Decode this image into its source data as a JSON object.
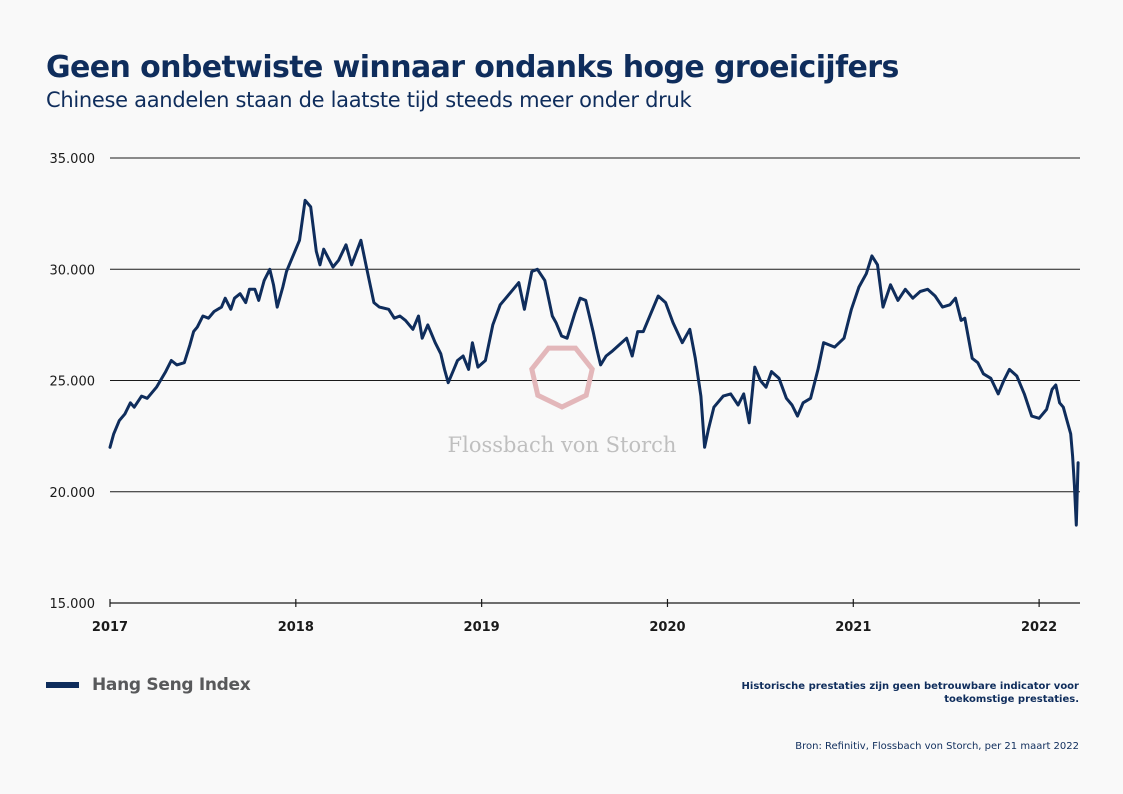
{
  "header": {
    "title": "Geen onbetwiste winnaar ondanks hoge groeicijfers",
    "subtitle": "Chinese aandelen staan de laatste tijd steeds meer onder druk"
  },
  "watermark": {
    "text": "Flossbach von Storch",
    "logo_color": "#e3b7ba"
  },
  "legend": {
    "label": "Hang Seng Index"
  },
  "footer": {
    "disclaimer": "Historische prestaties zijn geen betrouwbare indicator voor toekomstige prestaties.",
    "source": "Bron: Refinitiv, Flossbach von Storch, per 21 maart 2022"
  },
  "colors": {
    "line": "#0f2d5c",
    "text": "#0f2d5c",
    "background": "#f9f9f9"
  },
  "chart_data": {
    "type": "line",
    "grid": true,
    "ylim": [
      15000,
      35000
    ],
    "xlim": [
      2017.0,
      2022.22
    ],
    "yticks": [
      {
        "value": 15000,
        "label": "15.000"
      },
      {
        "value": 20000,
        "label": "20.000"
      },
      {
        "value": 25000,
        "label": "25.000"
      },
      {
        "value": 30000,
        "label": "30.000"
      },
      {
        "value": 35000,
        "label": "35.000"
      }
    ],
    "xticks": [
      {
        "value": 2017,
        "label": "2017"
      },
      {
        "value": 2018,
        "label": "2018"
      },
      {
        "value": 2019,
        "label": "2019"
      },
      {
        "value": 2020,
        "label": "2020"
      },
      {
        "value": 2021,
        "label": "2021"
      },
      {
        "value": 2022,
        "label": "2022"
      }
    ],
    "series": [
      {
        "name": "Hang Seng Index",
        "x": [
          2017.0,
          2017.02,
          2017.05,
          2017.08,
          2017.11,
          2017.13,
          2017.17,
          2017.2,
          2017.25,
          2017.3,
          2017.33,
          2017.36,
          2017.4,
          2017.43,
          2017.45,
          2017.47,
          2017.5,
          2017.53,
          2017.56,
          2017.6,
          2017.62,
          2017.65,
          2017.67,
          2017.7,
          2017.73,
          2017.75,
          2017.78,
          2017.8,
          2017.83,
          2017.86,
          2017.88,
          2017.9,
          2017.93,
          2017.95,
          2017.98,
          2018.02,
          2018.05,
          2018.08,
          2018.11,
          2018.13,
          2018.15,
          2018.2,
          2018.23,
          2018.27,
          2018.3,
          2018.35,
          2018.38,
          2018.42,
          2018.45,
          2018.5,
          2018.53,
          2018.56,
          2018.59,
          2018.63,
          2018.66,
          2018.68,
          2018.71,
          2018.75,
          2018.78,
          2018.8,
          2018.82,
          2018.85,
          2018.87,
          2018.9,
          2018.93,
          2018.95,
          2018.98,
          2019.02,
          2019.06,
          2019.1,
          2019.13,
          2019.17,
          2019.2,
          2019.23,
          2019.27,
          2019.3,
          2019.34,
          2019.38,
          2019.4,
          2019.43,
          2019.46,
          2019.5,
          2019.53,
          2019.56,
          2019.6,
          2019.62,
          2019.64,
          2019.67,
          2019.7,
          2019.74,
          2019.78,
          2019.81,
          2019.84,
          2019.87,
          2019.91,
          2019.95,
          2019.99,
          2020.03,
          2020.08,
          2020.12,
          2020.15,
          2020.18,
          2020.2,
          2020.22,
          2020.25,
          2020.3,
          2020.34,
          2020.38,
          2020.41,
          2020.44,
          2020.47,
          2020.5,
          2020.53,
          2020.56,
          2020.6,
          2020.64,
          2020.67,
          2020.7,
          2020.73,
          2020.77,
          2020.81,
          2020.84,
          2020.87,
          2020.9,
          2020.95,
          2020.99,
          2021.03,
          2021.07,
          2021.1,
          2021.13,
          2021.16,
          2021.2,
          2021.24,
          2021.28,
          2021.32,
          2021.36,
          2021.4,
          2021.44,
          2021.48,
          2021.52,
          2021.55,
          2021.58,
          2021.6,
          2021.64,
          2021.67,
          2021.7,
          2021.74,
          2021.78,
          2021.81,
          2021.84,
          2021.88,
          2021.92,
          2021.96,
          2022.0,
          2022.04,
          2022.07,
          2022.09,
          2022.11,
          2022.13,
          2022.15,
          2022.17,
          2022.18,
          2022.19,
          2022.2,
          2022.21
        ],
        "y": [
          22000,
          22600,
          23200,
          23500,
          24000,
          23800,
          24300,
          24200,
          24700,
          25400,
          25900,
          25700,
          25800,
          26600,
          27200,
          27400,
          27900,
          27800,
          28100,
          28300,
          28700,
          28200,
          28700,
          28900,
          28500,
          29100,
          29100,
          28600,
          29500,
          30000,
          29300,
          28300,
          29200,
          29900,
          30500,
          31300,
          33100,
          32800,
          30800,
          30200,
          30900,
          30100,
          30400,
          31100,
          30200,
          31300,
          30100,
          28500,
          28300,
          28200,
          27800,
          27900,
          27700,
          27300,
          27900,
          26900,
          27500,
          26700,
          26200,
          25500,
          24900,
          25500,
          25900,
          26100,
          25500,
          26700,
          25600,
          25900,
          27500,
          28400,
          28700,
          29100,
          29400,
          28200,
          29900,
          30000,
          29500,
          27900,
          27600,
          27000,
          26900,
          28000,
          28700,
          28600,
          27200,
          26400,
          25700,
          26100,
          26300,
          26600,
          26900,
          26100,
          27200,
          27200,
          28000,
          28800,
          28500,
          27600,
          26700,
          27300,
          26000,
          24300,
          22000,
          22800,
          23800,
          24300,
          24400,
          23900,
          24400,
          23100,
          25600,
          25000,
          24700,
          25400,
          25100,
          24200,
          23900,
          23400,
          24000,
          24200,
          25500,
          26700,
          26600,
          26500,
          26900,
          28200,
          29200,
          29800,
          30600,
          30200,
          28300,
          29300,
          28600,
          29100,
          28700,
          29000,
          29100,
          28800,
          28300,
          28400,
          28700,
          27700,
          27800,
          26000,
          25800,
          25300,
          25100,
          24400,
          25000,
          25500,
          25200,
          24400,
          23400,
          23300,
          23700,
          24600,
          24800,
          24000,
          23800,
          23200,
          22600,
          21600,
          20300,
          18500,
          21300
        ]
      }
    ]
  }
}
